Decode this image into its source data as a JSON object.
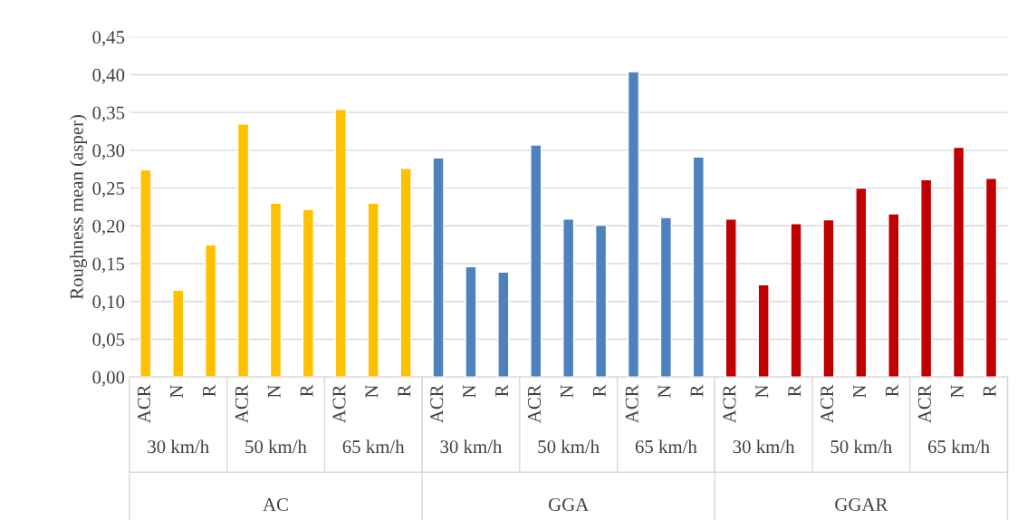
{
  "chart_data": {
    "type": "bar",
    "ylabel": "Roughness mean (asper)",
    "categories": [
      "ACR",
      "N",
      "R",
      "ACR",
      "N",
      "R",
      "ACR",
      "N",
      "R",
      "ACR",
      "N",
      "R",
      "ACR",
      "N",
      "R",
      "ACR",
      "N",
      "R",
      "ACR",
      "N",
      "R",
      "ACR",
      "N",
      "R",
      "ACR",
      "N",
      "R"
    ],
    "values": [
      0.274,
      0.115,
      0.175,
      0.335,
      0.23,
      0.222,
      0.354,
      0.23,
      0.276,
      0.29,
      0.146,
      0.139,
      0.307,
      0.209,
      0.201,
      0.404,
      0.211,
      0.291,
      0.209,
      0.122,
      0.203,
      0.208,
      0.25,
      0.216,
      0.261,
      0.304,
      0.263
    ],
    "colors": [
      "#ffc000",
      "#ffc000",
      "#ffc000",
      "#ffc000",
      "#ffc000",
      "#ffc000",
      "#ffc000",
      "#ffc000",
      "#ffc000",
      "#4f81bd",
      "#4f81bd",
      "#4f81bd",
      "#4f81bd",
      "#4f81bd",
      "#4f81bd",
      "#4f81bd",
      "#4f81bd",
      "#4f81bd",
      "#c00000",
      "#c00000",
      "#c00000",
      "#c00000",
      "#c00000",
      "#c00000",
      "#c00000",
      "#c00000",
      "#c00000"
    ],
    "ylim": [
      0,
      0.45
    ],
    "yticks": [
      {
        "value": 0,
        "label": "0,00"
      },
      {
        "value": 0.05,
        "label": "0,05"
      },
      {
        "value": 0.1,
        "label": "0,10"
      },
      {
        "value": 0.15,
        "label": "0,15"
      },
      {
        "value": 0.2,
        "label": "0,20"
      },
      {
        "value": 0.25,
        "label": "0,25"
      },
      {
        "value": 0.3,
        "label": "0,30"
      },
      {
        "value": 0.35,
        "label": "0,35"
      },
      {
        "value": 0.4,
        "label": "0,40"
      },
      {
        "value": 0.45,
        "label": "0,45"
      }
    ],
    "grid": "y",
    "annotations": [
      "30 km/h",
      "50 km/h",
      "65 km/h",
      "30 km/h",
      "50 km/h",
      "65 km/h",
      "30 km/h",
      "50 km/h",
      "65 km/h",
      "AC",
      "GGA",
      "GGAR"
    ]
  }
}
